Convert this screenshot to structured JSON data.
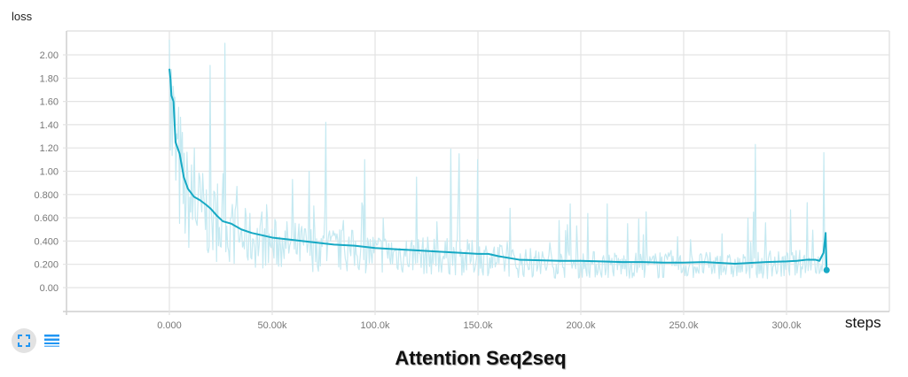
{
  "header": {
    "y_axis_title": "loss"
  },
  "footer": {
    "x_axis_title": "steps",
    "chart_title": "Attention Seq2seq"
  },
  "controls": {
    "expand_icon": "fullscreen-icon",
    "data_table_icon": "list-icon"
  },
  "colors": {
    "smoothed": "#16a9c4",
    "raw": "#c5e9f1",
    "grid": "#e3e3e3",
    "axis": "#cfcfcf",
    "button_bg": "#e2e2e2",
    "icon": "#2196f3"
  },
  "chart_data": {
    "type": "line",
    "title": "Attention Seq2seq",
    "xlabel": "steps",
    "ylabel": "loss",
    "xlim": [
      -50000,
      350000
    ],
    "ylim": [
      -0.2,
      2.2
    ],
    "grid": true,
    "x_ticks": [
      0,
      50000,
      100000,
      150000,
      200000,
      250000,
      300000
    ],
    "x_tick_labels": [
      "0.000",
      "50.00k",
      "100.0k",
      "150.0k",
      "200.0k",
      "250.0k",
      "300.0k"
    ],
    "y_ticks": [
      0,
      0.2,
      0.4,
      0.6,
      0.8,
      1.0,
      1.2,
      1.4,
      1.6,
      1.8,
      2.0
    ],
    "y_tick_labels": [
      "0.00",
      "0.200",
      "0.400",
      "0.600",
      "0.800",
      "1.00",
      "1.20",
      "1.40",
      "1.60",
      "1.80",
      "2.00"
    ],
    "series": [
      {
        "name": "loss (smoothed)",
        "x": [
          0,
          500,
          1000,
          2000,
          3000,
          5000,
          7000,
          9000,
          12000,
          15000,
          18000,
          20000,
          23000,
          26000,
          30000,
          35000,
          40000,
          45000,
          50000,
          60000,
          70000,
          80000,
          90000,
          100000,
          110000,
          120000,
          130000,
          140000,
          150000,
          155000,
          160000,
          170000,
          180000,
          190000,
          200000,
          210000,
          220000,
          230000,
          240000,
          250000,
          260000,
          270000,
          275000,
          280000,
          290000,
          300000,
          305000,
          310000,
          314000,
          316000,
          318000,
          319000,
          319500
        ],
        "values": [
          1.88,
          1.8,
          1.65,
          1.6,
          1.25,
          1.15,
          0.95,
          0.85,
          0.78,
          0.75,
          0.71,
          0.68,
          0.62,
          0.57,
          0.55,
          0.5,
          0.47,
          0.45,
          0.43,
          0.41,
          0.39,
          0.37,
          0.36,
          0.34,
          0.33,
          0.32,
          0.31,
          0.3,
          0.29,
          0.29,
          0.27,
          0.24,
          0.235,
          0.23,
          0.23,
          0.225,
          0.22,
          0.22,
          0.215,
          0.215,
          0.22,
          0.21,
          0.205,
          0.21,
          0.22,
          0.225,
          0.23,
          0.24,
          0.24,
          0.23,
          0.3,
          0.47,
          0.15
        ]
      },
      {
        "name": "loss (raw)",
        "x_range": [
          0,
          319500
        ],
        "approx_range": [
          0.02,
          2.13
        ],
        "notable_spikes": [
          [
            0,
            2.13
          ],
          [
            2000,
            1.73
          ],
          [
            12000,
            1.2
          ],
          [
            20000,
            1.91
          ],
          [
            27000,
            2.1
          ],
          [
            33000,
            0.87
          ],
          [
            45000,
            0.65
          ],
          [
            60000,
            0.93
          ],
          [
            68000,
            1.0
          ],
          [
            76000,
            1.42
          ],
          [
            95000,
            1.1
          ],
          [
            120000,
            0.95
          ],
          [
            137000,
            1.19
          ],
          [
            141000,
            1.15
          ],
          [
            150000,
            1.1
          ],
          [
            195000,
            0.72
          ],
          [
            213000,
            0.72
          ],
          [
            285000,
            1.23
          ],
          [
            310000,
            0.73
          ],
          [
            318000,
            1.16
          ]
        ]
      }
    ],
    "last_point": {
      "x": 319500,
      "value": 0.15
    }
  }
}
